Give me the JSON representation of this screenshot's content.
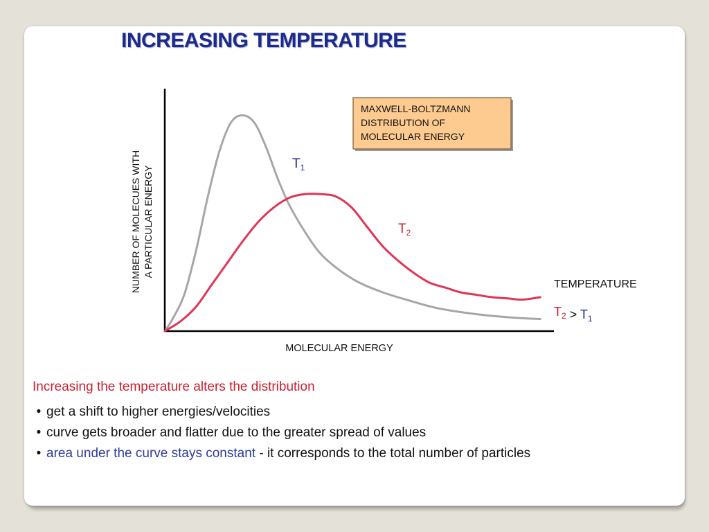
{
  "slide": {
    "title": "INCREASING TEMPERATURE",
    "caption": "Increasing the temperature alters the distribution",
    "bullets": [
      {
        "text": "get a shift to higher energies/velocities"
      },
      {
        "text": "curve gets broader and flatter due to the greater spread of values"
      },
      {
        "highlight": "area under the curve stays constant",
        "rest": " - it corresponds to the total number of particles"
      }
    ],
    "bullet_symbol": "•"
  },
  "chart_data": {
    "type": "line",
    "title": "",
    "callout": [
      "MAXWELL-BOLTZMANN",
      "DISTRIBUTION OF",
      "MOLECULAR ENERGY"
    ],
    "xlabel": "MOLECULAR ENERGY",
    "ylabel": [
      "NUMBER OF MOLECUES WITH",
      "A PARTICULAR ENERGY"
    ],
    "xlim": [
      0,
      100
    ],
    "ylim": [
      0,
      100
    ],
    "grid": false,
    "series": [
      {
        "name": "T1",
        "base": "T",
        "sub": "1",
        "color": "#a6a6a6",
        "label_color": "#1b2a8c",
        "x": [
          0,
          2,
          5,
          8,
          11,
          14,
          17,
          20,
          23,
          26,
          29,
          32,
          36,
          40,
          45,
          50,
          56,
          62,
          70,
          80,
          90,
          96.5
        ],
        "y": [
          0,
          5,
          15,
          33,
          55,
          74,
          86,
          89,
          86,
          76,
          63,
          52,
          41,
          32,
          25,
          20,
          16,
          13,
          9.5,
          7,
          5.5,
          5
        ]
      },
      {
        "name": "T2",
        "base": "T",
        "sub": "2",
        "color": "#e03457",
        "label_color": "#cc1e2e",
        "x": [
          0,
          4,
          8,
          12,
          16,
          20,
          24,
          28,
          32,
          36,
          40,
          44,
          48,
          52,
          56,
          60,
          64,
          68,
          72,
          76,
          80,
          84,
          88,
          92,
          96.5
        ],
        "y": [
          0,
          4,
          10,
          19,
          28,
          37,
          45,
          51,
          55,
          56.5,
          56.5,
          55.5,
          51,
          43,
          35,
          29,
          24,
          20,
          18,
          16,
          15,
          14,
          13.5,
          13,
          14
        ]
      }
    ],
    "legend": {
      "heading": "TEMPERATURE",
      "relation": [
        {
          "base": "T",
          "sub": "2",
          "color": "#cc1e2e"
        },
        {
          "op": " > "
        },
        {
          "base": "T",
          "sub": "1",
          "color": "#1b2a8c"
        }
      ]
    }
  }
}
